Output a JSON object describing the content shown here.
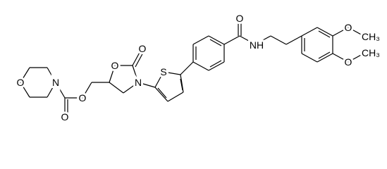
{
  "atoms": [
    "O",
    "N",
    "O",
    "O",
    "O",
    "O",
    "N",
    "S",
    "O",
    "NH",
    "O",
    "CH₃",
    "O",
    "CH₃"
  ]
}
